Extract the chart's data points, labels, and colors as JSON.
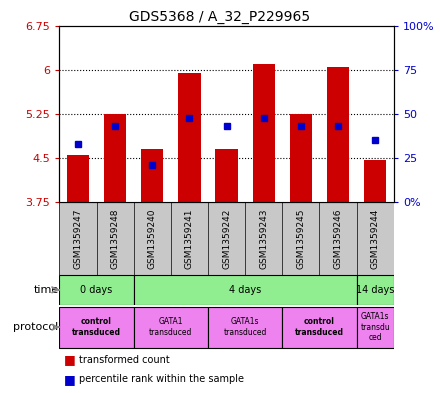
{
  "title": "GDS5368 / A_32_P229965",
  "samples": [
    "GSM1359247",
    "GSM1359248",
    "GSM1359240",
    "GSM1359241",
    "GSM1359242",
    "GSM1359243",
    "GSM1359245",
    "GSM1359246",
    "GSM1359244"
  ],
  "transformed_counts": [
    4.55,
    5.25,
    4.65,
    5.95,
    4.65,
    6.1,
    5.25,
    6.05,
    4.47
  ],
  "percentile_ranks": [
    33,
    43,
    21,
    48,
    43,
    48,
    43,
    43,
    35
  ],
  "ymin": 3.75,
  "ymax": 6.75,
  "yticks": [
    3.75,
    4.5,
    5.25,
    6.0,
    6.75
  ],
  "yticklabels": [
    "3.75",
    "4.5",
    "5.25",
    "6",
    "6.75"
  ],
  "right_yticks": [
    0,
    25,
    50,
    75,
    100
  ],
  "right_yticklabels": [
    "0%",
    "25",
    "50",
    "75",
    "100%"
  ],
  "bar_color": "#CC0000",
  "blue_color": "#0000CC",
  "bar_width": 0.6,
  "left_axis_color": "#CC0000",
  "right_axis_color": "#0000CC",
  "time_groups": [
    {
      "label": "0 days",
      "start": 0,
      "end": 2
    },
    {
      "label": "4 days",
      "start": 2,
      "end": 8
    },
    {
      "label": "14 days",
      "start": 8,
      "end": 9
    }
  ],
  "proto_groups": [
    {
      "label": "control\ntransduced",
      "start": 0,
      "end": 2,
      "bold": true
    },
    {
      "label": "GATA1\ntransduced",
      "start": 2,
      "end": 4,
      "bold": false
    },
    {
      "label": "GATA1s\ntransduced",
      "start": 4,
      "end": 6,
      "bold": false
    },
    {
      "label": "control\ntransduced",
      "start": 6,
      "end": 8,
      "bold": true
    },
    {
      "label": "GATA1s\ntransdu\nced",
      "start": 8,
      "end": 9,
      "bold": false
    }
  ],
  "time_color": "#90EE90",
  "proto_color": "#EE82EE",
  "sample_bg_color": "#C8C8C8"
}
